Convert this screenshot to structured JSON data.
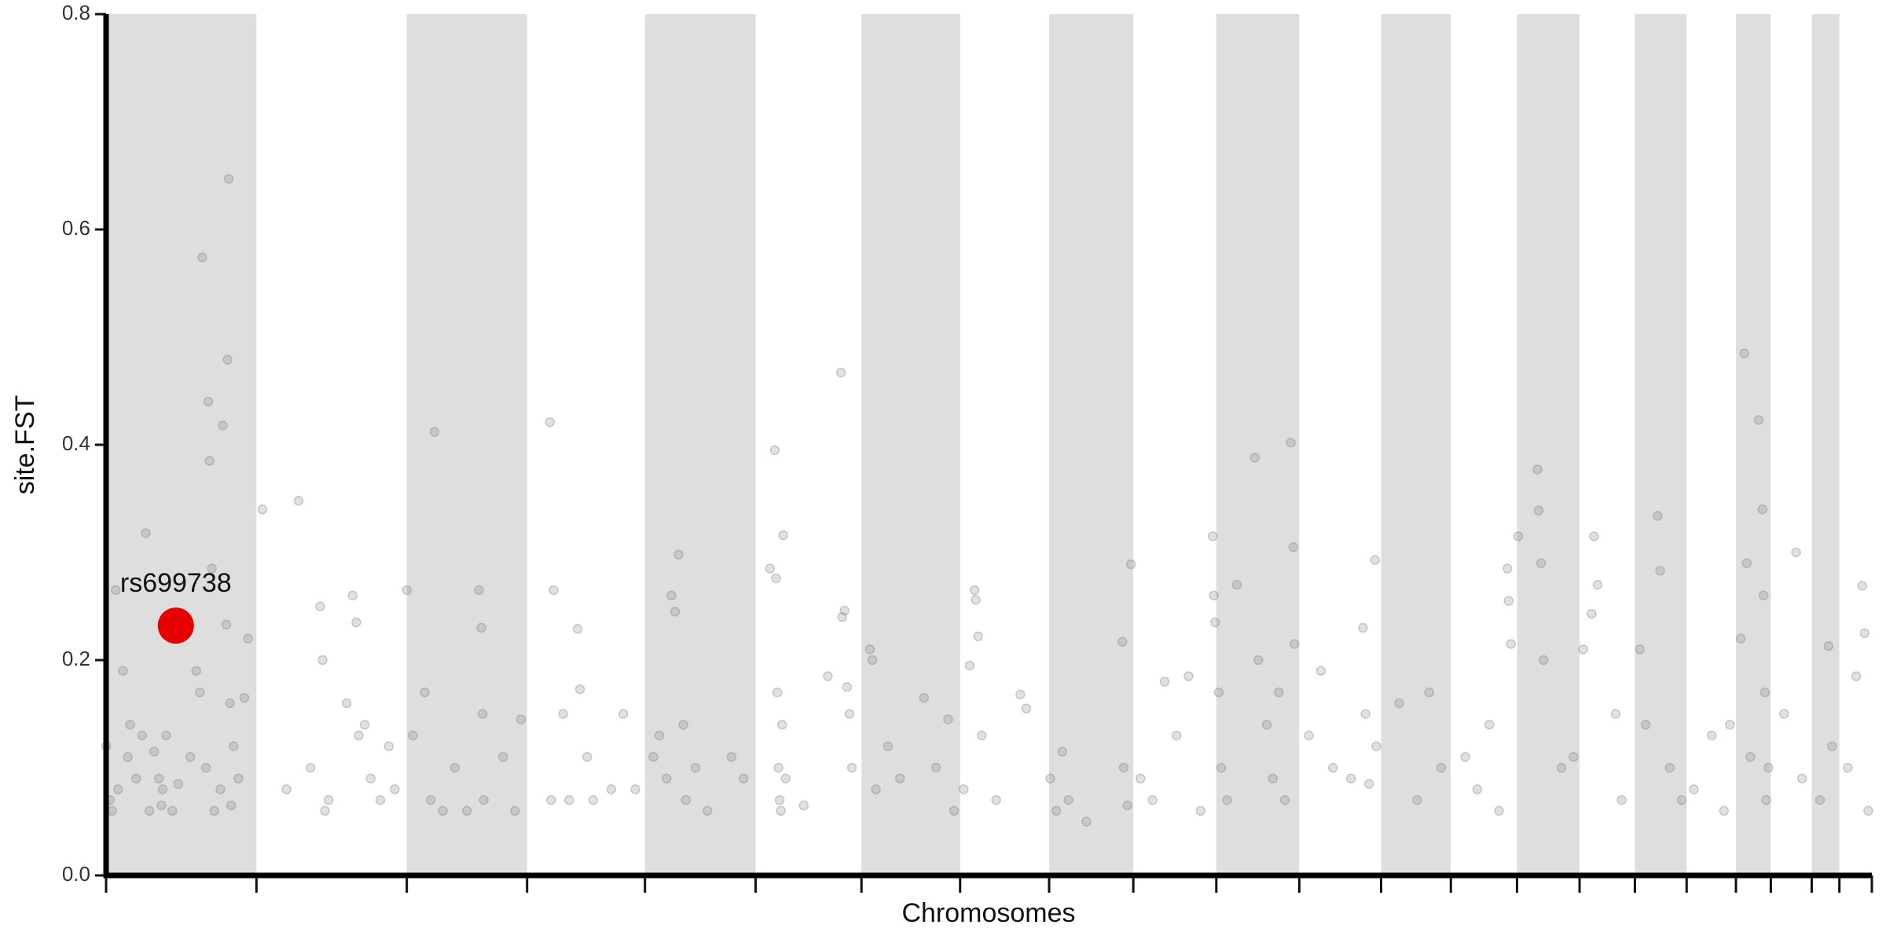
{
  "chart_data": {
    "type": "scatter",
    "xlabel": "Chromosomes",
    "ylabel": "site.FST",
    "xlim": [
      0,
      1468
    ],
    "ylim": [
      0,
      0.8
    ],
    "xticks": [
      0,
      125,
      250,
      350,
      448,
      540,
      628,
      710,
      784,
      854,
      923,
      992,
      1060,
      1118,
      1173,
      1225,
      1271,
      1314,
      1355,
      1384,
      1418,
      1441,
      1468
    ],
    "yticks": [
      {
        "value": 0,
        "label": "0.0"
      },
      0.2,
      0.4,
      0.6,
      0.8
    ],
    "band_color": "#dedede",
    "color": "#777777",
    "x": [
      0,
      3,
      5,
      8,
      10,
      14,
      18,
      20,
      25,
      30,
      33,
      36,
      40,
      44,
      46,
      47,
      50,
      55,
      60,
      70,
      75,
      78,
      80,
      83,
      85,
      86,
      88,
      90,
      95,
      97,
      100,
      101,
      102,
      103,
      104,
      106,
      110,
      115,
      118,
      130,
      150,
      160,
      170,
      178,
      180,
      182,
      185,
      200,
      205,
      208,
      210,
      215,
      220,
      228,
      235,
      240,
      250,
      255,
      265,
      270,
      273,
      280,
      290,
      300,
      310,
      312,
      313,
      314,
      330,
      340,
      345,
      369,
      370,
      372,
      380,
      385,
      392,
      394,
      400,
      405,
      420,
      430,
      440,
      455,
      460,
      466,
      470,
      473,
      476,
      480,
      482,
      490,
      500,
      520,
      530,
      552,
      556,
      557,
      558,
      559,
      560,
      561,
      562,
      563,
      565,
      580,
      600,
      611,
      612,
      614,
      616,
      618,
      620,
      635,
      637,
      640,
      650,
      660,
      680,
      690,
      700,
      705,
      713,
      718,
      722,
      723,
      725,
      728,
      740,
      760,
      765,
      785,
      790,
      795,
      800,
      815,
      845,
      846,
      849,
      852,
      860,
      870,
      880,
      890,
      900,
      910,
      920,
      921,
      922,
      925,
      927,
      932,
      940,
      955,
      958,
      965,
      970,
      975,
      980,
      985,
      987,
      988,
      1000,
      1010,
      1020,
      1035,
      1045,
      1047,
      1050,
      1055,
      1056,
      1075,
      1090,
      1100,
      1110,
      1130,
      1140,
      1150,
      1158,
      1165,
      1166,
      1168,
      1174,
      1190,
      1191,
      1193,
      1195,
      1210,
      1220,
      1228,
      1235,
      1237,
      1240,
      1255,
      1260,
      1275,
      1280,
      1290,
      1292,
      1300,
      1310,
      1320,
      1335,
      1345,
      1350,
      1359,
      1362,
      1364,
      1367,
      1374,
      1377,
      1378,
      1379,
      1380,
      1382,
      1395,
      1405,
      1410,
      1425,
      1432,
      1435,
      1448,
      1455,
      1460,
      1462,
      1465
    ],
    "values": [
      0.12,
      0.07,
      0.06,
      0.265,
      0.08,
      0.19,
      0.11,
      0.14,
      0.09,
      0.13,
      0.318,
      0.06,
      0.115,
      0.09,
      0.065,
      0.08,
      0.13,
      0.06,
      0.085,
      0.11,
      0.19,
      0.17,
      0.574,
      0.1,
      0.44,
      0.385,
      0.285,
      0.06,
      0.08,
      0.418,
      0.233,
      0.479,
      0.647,
      0.16,
      0.065,
      0.12,
      0.09,
      0.165,
      0.22,
      0.34,
      0.08,
      0.348,
      0.1,
      0.25,
      0.2,
      0.06,
      0.07,
      0.16,
      0.26,
      0.235,
      0.13,
      0.14,
      0.09,
      0.07,
      0.12,
      0.08,
      0.265,
      0.13,
      0.17,
      0.07,
      0.412,
      0.06,
      0.1,
      0.06,
      0.265,
      0.23,
      0.15,
      0.07,
      0.11,
      0.06,
      0.145,
      0.421,
      0.07,
      0.265,
      0.15,
      0.07,
      0.229,
      0.173,
      0.11,
      0.07,
      0.08,
      0.15,
      0.08,
      0.11,
      0.13,
      0.09,
      0.26,
      0.245,
      0.298,
      0.14,
      0.07,
      0.1,
      0.06,
      0.11,
      0.09,
      0.285,
      0.395,
      0.276,
      0.17,
      0.1,
      0.07,
      0.06,
      0.14,
      0.316,
      0.09,
      0.065,
      0.185,
      0.467,
      0.24,
      0.246,
      0.175,
      0.15,
      0.1,
      0.21,
      0.2,
      0.08,
      0.12,
      0.09,
      0.165,
      0.1,
      0.145,
      0.06,
      0.08,
      0.195,
      0.265,
      0.256,
      0.222,
      0.13,
      0.07,
      0.168,
      0.155,
      0.09,
      0.06,
      0.115,
      0.07,
      0.05,
      0.217,
      0.1,
      0.065,
      0.289,
      0.09,
      0.07,
      0.18,
      0.13,
      0.185,
      0.06,
      0.315,
      0.26,
      0.235,
      0.17,
      0.1,
      0.07,
      0.27,
      0.388,
      0.2,
      0.14,
      0.09,
      0.17,
      0.07,
      0.402,
      0.305,
      0.215,
      0.13,
      0.19,
      0.1,
      0.09,
      0.23,
      0.15,
      0.085,
      0.293,
      0.12,
      0.16,
      0.07,
      0.17,
      0.1,
      0.11,
      0.08,
      0.14,
      0.06,
      0.285,
      0.255,
      0.215,
      0.315,
      0.377,
      0.339,
      0.29,
      0.2,
      0.1,
      0.11,
      0.21,
      0.243,
      0.315,
      0.27,
      0.15,
      0.07,
      0.21,
      0.14,
      0.334,
      0.283,
      0.1,
      0.07,
      0.08,
      0.13,
      0.06,
      0.14,
      0.22,
      0.485,
      0.29,
      0.11,
      0.423,
      0.34,
      0.26,
      0.17,
      0.07,
      0.1,
      0.15,
      0.3,
      0.09,
      0.07,
      0.213,
      0.12,
      0.1,
      0.185,
      0.269,
      0.225,
      0.06
    ],
    "highlight": {
      "label": "rs699738",
      "x": 58,
      "value": 0.232,
      "color": "#e60000"
    }
  }
}
